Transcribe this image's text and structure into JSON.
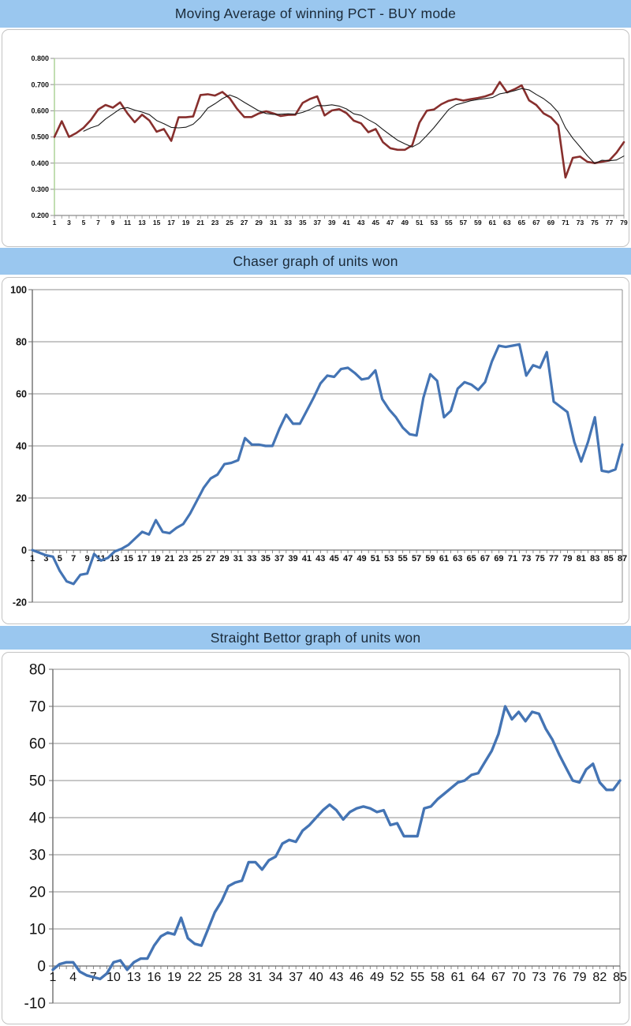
{
  "header_style": {
    "background": "#9ac7ef",
    "text_color": "#1b2a38"
  },
  "palette": {
    "grid_gray": "#8f8f8f",
    "light_grid": "#a9a9a9",
    "green_axis": "#a9cf92",
    "panel_border": "#c3c3c3",
    "label_color": "#111111"
  },
  "chart_data": [
    {
      "type": "line",
      "title": "Moving Average of winning PCT - BUY mode",
      "ylim": [
        0.2,
        0.8
      ],
      "ytick_step": 0.1,
      "ytick_decimals": 3,
      "x_start": 1,
      "x_label_step": 2,
      "x_label_end": 79,
      "grid": "horizontal",
      "legend_position": "none",
      "series": [
        {
          "name": "winning PCT",
          "color": "#872f2d",
          "width": 2.6,
          "values": [
            0.5,
            0.56,
            0.5,
            0.515,
            0.535,
            0.565,
            0.605,
            0.622,
            0.612,
            0.632,
            0.59,
            0.556,
            0.585,
            0.563,
            0.52,
            0.53,
            0.485,
            0.575,
            0.575,
            0.578,
            0.66,
            0.663,
            0.658,
            0.672,
            0.648,
            0.608,
            0.576,
            0.576,
            0.59,
            0.598,
            0.59,
            0.58,
            0.584,
            0.585,
            0.63,
            0.645,
            0.655,
            0.582,
            0.601,
            0.606,
            0.591,
            0.562,
            0.552,
            0.518,
            0.53,
            0.48,
            0.457,
            0.451,
            0.451,
            0.468,
            0.555,
            0.6,
            0.605,
            0.625,
            0.638,
            0.645,
            0.639,
            0.644,
            0.649,
            0.655,
            0.665,
            0.71,
            0.67,
            0.682,
            0.697,
            0.64,
            0.622,
            0.59,
            0.575,
            0.545,
            0.345,
            0.42,
            0.425,
            0.405,
            0.4,
            0.405,
            0.41,
            0.44,
            0.48
          ]
        },
        {
          "name": "moving average (5)",
          "color": "#1a1a1a",
          "width": 1.1,
          "derived": "sma",
          "window": 5
        }
      ]
    },
    {
      "type": "line",
      "title": "Chaser graph of units won",
      "ylim": [
        -20,
        100
      ],
      "ytick_step": 20,
      "ytick_decimals": 0,
      "x_start": 1,
      "x_label_step": 2,
      "x_label_end": 87,
      "grid": "horizontal",
      "legend_position": "none",
      "series": [
        {
          "name": "units won",
          "color": "#4474b4",
          "width": 3.2,
          "values": [
            0,
            -1,
            -2,
            -2.5,
            -8,
            -12,
            -13,
            -9.5,
            -9,
            -1.5,
            -4,
            -3,
            -0.5,
            0.5,
            2,
            4.5,
            7,
            6,
            11.5,
            7,
            6.5,
            8.5,
            10,
            14,
            19,
            24,
            27.5,
            29,
            33,
            33.5,
            34.5,
            43,
            40.5,
            40.5,
            40,
            40,
            46.5,
            52,
            48.5,
            48.5,
            53.5,
            58.5,
            64,
            67,
            66.5,
            69.5,
            70,
            68,
            65.5,
            66,
            69,
            58,
            54,
            51,
            47,
            44.5,
            44,
            58.5,
            67.5,
            65,
            51,
            53.5,
            62,
            64.5,
            63.5,
            61.5,
            64.5,
            72.5,
            78.5,
            78,
            78.5,
            79,
            67,
            71,
            70,
            76,
            57,
            55,
            53,
            41.5,
            34,
            41.5,
            51,
            30.5,
            30,
            31,
            40.5
          ]
        }
      ]
    },
    {
      "type": "line",
      "title": "Straight Bettor graph of units won",
      "ylim": [
        -10,
        80
      ],
      "ytick_step": 10,
      "ytick_decimals": 0,
      "x_start": 1,
      "x_label_step": 3,
      "x_label_end": 85,
      "grid": "horizontal",
      "legend_position": "none",
      "series": [
        {
          "name": "units won",
          "color": "#4474b4",
          "width": 3.4,
          "values": [
            -1,
            0.5,
            1,
            1,
            -1.5,
            -2.5,
            -3,
            -3.5,
            -2,
            1,
            1.5,
            -1,
            1,
            2,
            2,
            5.5,
            8,
            9,
            8.5,
            13,
            7.5,
            6,
            5.5,
            10,
            14.5,
            17.5,
            21.5,
            22.5,
            23,
            28,
            28,
            26,
            28.5,
            29.5,
            33,
            34,
            33.5,
            36.5,
            38,
            40,
            42,
            43.5,
            42,
            39.5,
            41.5,
            42.5,
            43,
            42.5,
            41.5,
            42,
            38,
            38.5,
            35,
            35,
            35,
            42.5,
            43,
            45,
            46.5,
            48,
            49.5,
            50,
            51.5,
            52,
            55,
            58,
            62.5,
            70,
            66.5,
            68.5,
            66,
            68.5,
            68,
            64,
            61,
            57,
            53.5,
            50,
            49.5,
            53,
            54.5,
            49.5,
            47.5,
            47.5,
            50
          ]
        }
      ]
    }
  ]
}
